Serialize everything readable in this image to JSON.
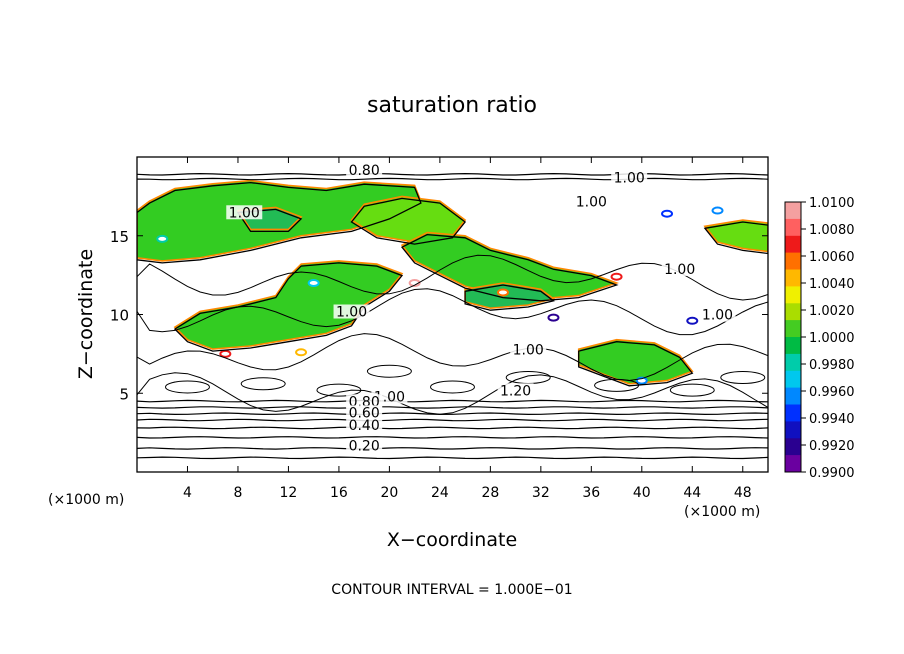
{
  "chart_data": {
    "type": "heatmap",
    "title": "saturation ratio",
    "xlabel": "X−coordinate",
    "ylabel": "Z−coordinate",
    "x_unit_left": "(×1000 m)",
    "x_unit_right": "(×1000 m)",
    "xlim": [
      0,
      50
    ],
    "ylim": [
      0,
      20
    ],
    "x_ticks": [
      4,
      8,
      12,
      16,
      20,
      24,
      28,
      32,
      36,
      40,
      44,
      48
    ],
    "y_ticks": [
      5,
      10,
      15
    ],
    "colorbar": {
      "labels": [
        "1.0100",
        "1.0080",
        "1.0060",
        "1.0040",
        "1.0020",
        "1.0000",
        "0.9980",
        "0.9960",
        "0.9940",
        "0.9920",
        "0.9900"
      ],
      "colors": [
        "#f4a0a0",
        "#ff6060",
        "#ee1a1a",
        "#ff7000",
        "#ffb800",
        "#f0f000",
        "#aadd00",
        "#44cc22",
        "#00bb44",
        "#00ccaa",
        "#00c8ee",
        "#0088ff",
        "#0030ff",
        "#1010c0",
        "#2a0090",
        "#6a00a0"
      ]
    },
    "contour_labels": [
      {
        "text": "0.80",
        "x": 18.0,
        "z": 19.0
      },
      {
        "text": "1.00",
        "x": 39.0,
        "z": 18.5
      },
      {
        "text": "1.00",
        "x": 36.0,
        "z": 17.0
      },
      {
        "text": "1.00",
        "x": 8.5,
        "z": 16.3
      },
      {
        "text": "1.00",
        "x": 43.0,
        "z": 12.7
      },
      {
        "text": "1.00",
        "x": 17.0,
        "z": 10.0
      },
      {
        "text": "1.00",
        "x": 46.0,
        "z": 9.8
      },
      {
        "text": "1.00",
        "x": 31.0,
        "z": 7.6
      },
      {
        "text": "1.20",
        "x": 30.0,
        "z": 5.0
      },
      {
        "text": "1.00",
        "x": 20.0,
        "z": 4.6
      },
      {
        "text": "0.80",
        "x": 18.0,
        "z": 4.3
      },
      {
        "text": "0.60",
        "x": 18.0,
        "z": 3.6
      },
      {
        "text": "0.40",
        "x": 18.0,
        "z": 2.8
      },
      {
        "text": "0.20",
        "x": 18.0,
        "z": 1.5
      }
    ],
    "footer": "CONTOUR INTERVAL = 1.000E−01"
  }
}
